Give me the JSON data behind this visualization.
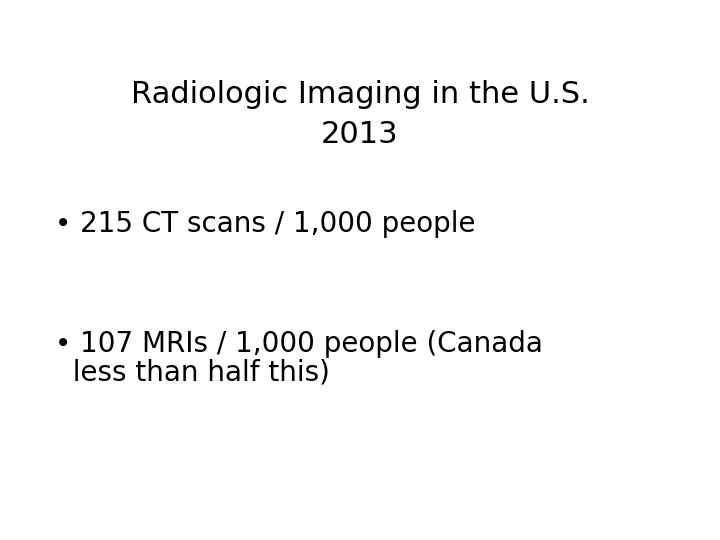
{
  "title_line1": "Radiologic Imaging in the U.S.",
  "title_line2": "2013",
  "bullet1": "• 215 CT scans / 1,000 people",
  "bullet2_line1": "• 107 MRIs / 1,000 people (Canada",
  "bullet2_line2": "  less than half this)",
  "background_color": "#ffffff",
  "text_color": "#000000",
  "title_fontsize": 22,
  "bullet_fontsize": 20,
  "font_family": "DejaVu Sans"
}
